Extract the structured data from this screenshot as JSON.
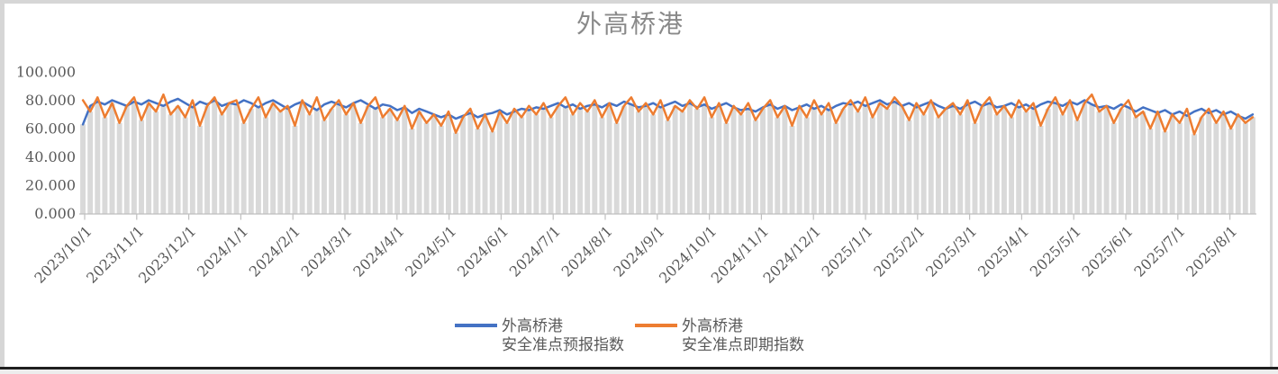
{
  "chart_data": {
    "type": "line",
    "title": "外高桥港",
    "y_axis": {
      "min": 0,
      "max": 100,
      "tick_values": [
        0,
        20,
        40,
        60,
        80,
        100
      ],
      "tick_labels": [
        "0.000",
        "20.000",
        "40.000",
        "60.000",
        "80.000",
        "100.000"
      ]
    },
    "x_axis": {
      "tick_labels": [
        "2023/10/1",
        "2023/11/1",
        "2023/12/1",
        "2024/1/1",
        "2024/2/1",
        "2024/3/1",
        "2024/4/1",
        "2024/5/1",
        "2024/6/1",
        "2024/7/1",
        "2024/8/1",
        "2024/9/1",
        "2024/10/1",
        "2024/11/1",
        "2024/12/1",
        "2025/1/1",
        "2025/2/1",
        "2025/3/1",
        "2025/4/1",
        "2025/5/1",
        "2025/6/1",
        "2025/7/1",
        "2025/8/1"
      ]
    },
    "grid": false,
    "legend_position": "bottom",
    "legend": [
      {
        "line1": "外高桥港",
        "line2": "安全准点预报指数",
        "color": "#4472C4"
      },
      {
        "line1": "外高桥港",
        "line2": "安全准点即期指数",
        "color": "#ED7D31"
      }
    ],
    "drop_bars": {
      "color": "#d9d9d9"
    },
    "colors": {
      "axis_line": "#bfbfbf",
      "tick_text": "#595959",
      "title_text": "#898989"
    },
    "series": [
      {
        "name": "外高桥港 安全准点预报指数",
        "color": "#4472C4",
        "values": [
          63,
          76,
          79,
          77,
          80,
          78,
          76,
          79,
          77,
          80,
          78,
          76,
          79,
          81,
          78,
          75,
          79,
          77,
          80,
          76,
          78,
          77,
          80,
          78,
          75,
          78,
          80,
          77,
          74,
          77,
          79,
          76,
          73,
          77,
          79,
          77,
          75,
          78,
          80,
          77,
          74,
          77,
          76,
          73,
          75,
          71,
          74,
          72,
          70,
          68,
          70,
          67,
          69,
          71,
          68,
          70,
          71,
          73,
          70,
          72,
          74,
          73,
          75,
          74,
          76,
          78,
          75,
          77,
          74,
          76,
          77,
          75,
          78,
          76,
          79,
          77,
          75,
          76,
          78,
          75,
          77,
          79,
          76,
          78,
          75,
          77,
          74,
          76,
          78,
          75,
          73,
          74,
          72,
          75,
          77,
          74,
          76,
          73,
          75,
          77,
          74,
          76,
          73,
          76,
          78,
          77,
          79,
          76,
          78,
          80,
          77,
          79,
          76,
          78,
          75,
          77,
          79,
          76,
          74,
          76,
          74,
          77,
          79,
          76,
          78,
          75,
          76,
          78,
          75,
          77,
          74,
          77,
          79,
          78,
          76,
          79,
          77,
          80,
          77,
          75,
          76,
          74,
          77,
          75,
          72,
          75,
          73,
          71,
          73,
          70,
          72,
          69,
          72,
          74,
          71,
          73,
          70,
          72,
          69,
          67,
          70
        ]
      },
      {
        "name": "外高桥港 安全准点即期指数",
        "color": "#ED7D31",
        "values": [
          80,
          72,
          82,
          68,
          78,
          64,
          76,
          82,
          66,
          78,
          72,
          84,
          70,
          76,
          68,
          80,
          62,
          76,
          82,
          70,
          78,
          80,
          64,
          74,
          82,
          68,
          78,
          72,
          76,
          62,
          80,
          70,
          82,
          66,
          74,
          80,
          70,
          78,
          64,
          76,
          82,
          68,
          74,
          66,
          76,
          60,
          72,
          64,
          70,
          62,
          72,
          57,
          68,
          74,
          60,
          70,
          58,
          72,
          64,
          74,
          68,
          76,
          70,
          78,
          68,
          76,
          82,
          70,
          78,
          72,
          80,
          68,
          78,
          64,
          76,
          82,
          72,
          78,
          70,
          80,
          66,
          76,
          72,
          80,
          74,
          82,
          68,
          78,
          64,
          76,
          70,
          78,
          66,
          74,
          80,
          68,
          76,
          62,
          76,
          68,
          80,
          70,
          78,
          64,
          74,
          80,
          72,
          82,
          68,
          78,
          74,
          82,
          76,
          66,
          78,
          70,
          80,
          68,
          74,
          78,
          70,
          80,
          64,
          76,
          82,
          70,
          76,
          68,
          80,
          72,
          78,
          62,
          74,
          82,
          70,
          80,
          66,
          78,
          84,
          72,
          76,
          64,
          74,
          80,
          68,
          72,
          60,
          72,
          58,
          70,
          64,
          74,
          56,
          68,
          74,
          64,
          72,
          60,
          70,
          64,
          68
        ]
      }
    ]
  }
}
